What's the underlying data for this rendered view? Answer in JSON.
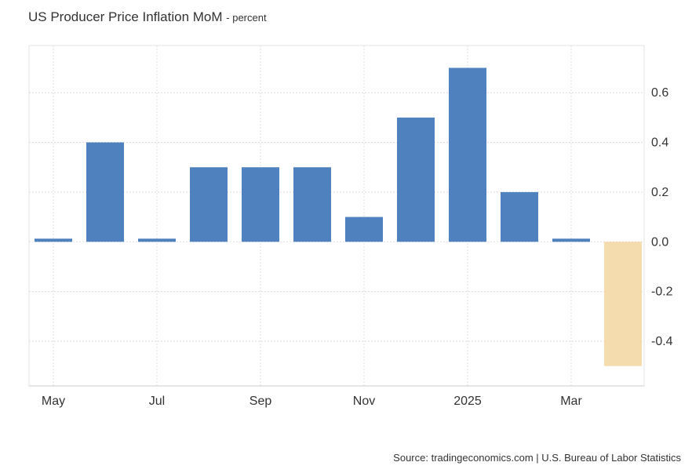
{
  "title": "US Producer Price Inflation MoM",
  "subtitle": "- percent",
  "source": "Source: tradingeconomics.com | U.S. Bureau of Labor Statistics",
  "colors": {
    "positive": "#4e81bd",
    "negative": "#f5dcae",
    "grid": "#dddddd"
  },
  "chart_data": {
    "type": "bar",
    "title": "US Producer Price Inflation MoM",
    "ylabel": "percent",
    "categories": [
      "May 2024",
      "Jun 2024",
      "Jul 2024",
      "Aug 2024",
      "Sep 2024",
      "Oct 2024",
      "Nov 2024",
      "Dec 2024",
      "Jan 2025",
      "Feb 2025",
      "Mar 2025",
      "Apr 2025"
    ],
    "values": [
      0.0,
      0.4,
      0.0,
      0.3,
      0.3,
      0.3,
      0.1,
      0.5,
      0.7,
      0.2,
      0.0,
      -0.5
    ],
    "x_tick_labels": [
      {
        "index": 0,
        "label": "May"
      },
      {
        "index": 2,
        "label": "Jul"
      },
      {
        "index": 4,
        "label": "Sep"
      },
      {
        "index": 6,
        "label": "Nov"
      },
      {
        "index": 8,
        "label": "2025"
      },
      {
        "index": 10,
        "label": "Mar"
      }
    ],
    "y_ticks": [
      0.6,
      0.4,
      0.2,
      0.0,
      -0.2,
      -0.4
    ],
    "y_tick_labels": [
      "0.6",
      "0.4",
      "0.2",
      "0.0",
      "-0.2",
      "-0.4"
    ],
    "ylim": [
      -0.58,
      0.79
    ],
    "grid": true,
    "y_axis_position": "right"
  }
}
